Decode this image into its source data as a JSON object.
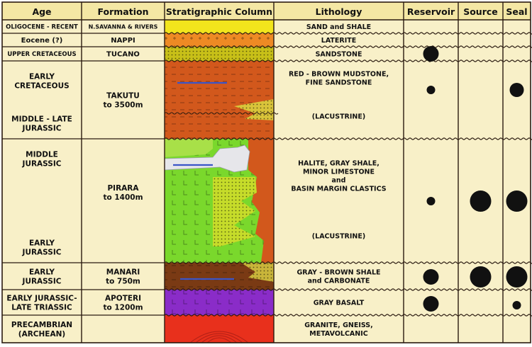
{
  "headers": {
    "age": "Age",
    "formation": "Formation",
    "column": "Stratigraphic Column",
    "lithology": "Lithology",
    "reservoir": "Reservoir",
    "source": "Source",
    "seal": "Seal"
  },
  "units": [
    {
      "id": "oligocene",
      "age_lines": [
        "OLIGOCENE - RECENT"
      ],
      "formation_lines": [
        "N.SAVANNA & RIVERS"
      ],
      "lithology_lines": [
        "SAND and SHALE"
      ],
      "column_color": "#f2e51c",
      "reservoir": "",
      "source": "",
      "seal": ""
    },
    {
      "id": "eocene",
      "age_lines": [
        "Eocene (?)"
      ],
      "formation_lines": [
        "NAPPI"
      ],
      "lithology_lines": [
        "LATERITE"
      ],
      "column_color": "#ee8a24",
      "reservoir": "",
      "source": "",
      "seal": ""
    },
    {
      "id": "upper-cretaceous",
      "age_lines": [
        "UPPER CRETACEOUS"
      ],
      "formation_lines": [
        "TUCANO"
      ],
      "lithology_lines": [
        "SANDSTONE"
      ],
      "column_color": "#c8c018",
      "reservoir": "large",
      "source": "",
      "seal": ""
    },
    {
      "id": "takutu",
      "age_lines": [
        "EARLY",
        "CRETACEOUS"
      ],
      "age_lines_lower": [
        "MIDDLE - LATE",
        "JURASSIC"
      ],
      "formation_lines": [
        "TAKUTU",
        "to 3500m"
      ],
      "lithology_lines": [
        "RED - BROWN MUDSTONE,",
        "FINE SANDSTONE"
      ],
      "lithology_lines_lower": [
        "(LACUSTRINE)"
      ],
      "column_color": "#d2581c",
      "reservoir": "small",
      "source": "",
      "seal": "medium"
    },
    {
      "id": "pirara",
      "age_lines": [
        "MIDDLE",
        "JURASSIC"
      ],
      "age_lines_lower": [
        "EARLY",
        "JURASSIC"
      ],
      "formation_lines": [
        "PIRARA",
        "to 1400m"
      ],
      "lithology_lines": [
        "HALITE, GRAY SHALE,",
        "MINOR LIMESTONE",
        "and",
        "BASIN MARGIN CLASTICS"
      ],
      "lithology_lines_lower": [
        "(LACUSTRINE)"
      ],
      "column_color": "#7ad82c",
      "reservoir": "small",
      "source": "xlarge",
      "seal": "xlarge"
    },
    {
      "id": "manari",
      "age_lines": [
        "EARLY",
        "JURASSIC"
      ],
      "formation_lines": [
        "MANARI",
        "to 750m"
      ],
      "lithology_lines": [
        "GRAY - BROWN SHALE",
        "and CARBONATE"
      ],
      "column_color": "#7a3a14",
      "reservoir": "large",
      "source": "xlarge",
      "seal": "xlarge"
    },
    {
      "id": "apoteri",
      "age_lines": [
        "EARLY JURASSIC-",
        "LATE TRIASSIC"
      ],
      "formation_lines": [
        "APOTERI",
        "to 1200m"
      ],
      "lithology_lines": [
        "GRAY BASALT"
      ],
      "column_color": "#8a2cc8",
      "reservoir": "large",
      "source": "",
      "seal": "small"
    },
    {
      "id": "precambrian",
      "age_lines": [
        "PRECAMBRIAN",
        "(ARCHEAN)"
      ],
      "formation_lines": [],
      "lithology_lines": [
        "GRANITE, GNEISS,",
        "METAVOLCANIC"
      ],
      "column_color": "#e8301c",
      "reservoir": "",
      "source": "",
      "seal": ""
    }
  ],
  "colors": {
    "panel": "#f8f0c8",
    "header": "#f4e7a4",
    "border": "#2a1a10",
    "halite": "#e6e6ea",
    "sand_dots": "#efe53a",
    "marker": "#111111",
    "blue_streak": "#3b55c8"
  }
}
